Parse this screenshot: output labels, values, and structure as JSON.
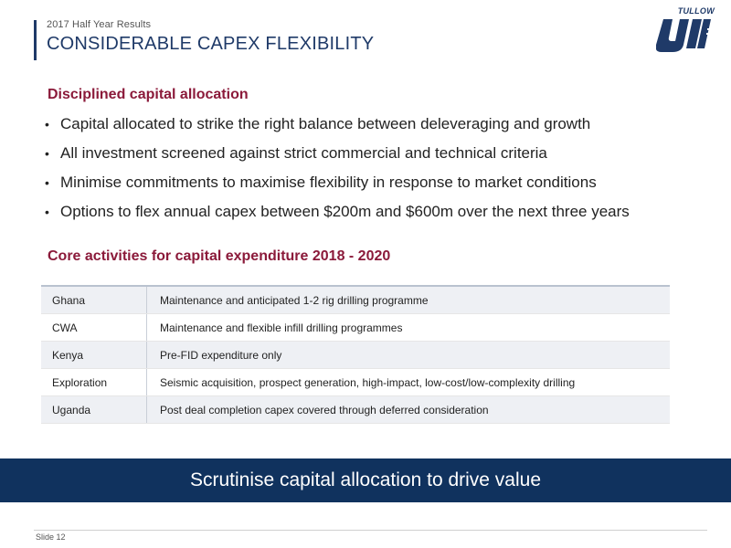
{
  "header": {
    "kicker": "2017 Half Year Results",
    "title": "CONSIDERABLE CAPEX FLEXIBILITY"
  },
  "logo": {
    "word": "TULLOW",
    "brand_color": "#1f3a68"
  },
  "capital_allocation": {
    "heading": "Disciplined capital allocation",
    "bullets": [
      "Capital allocated to strike the right balance between deleveraging and growth",
      "All investment screened against strict commercial and technical criteria",
      "Minimise commitments to maximise flexibility in response to market conditions",
      "Options to flex annual capex between $200m and $600m over the next three years"
    ]
  },
  "core_activities": {
    "heading": "Core activities for capital expenditure 2018 - 2020",
    "rows": [
      {
        "region": "Ghana",
        "activity": "Maintenance and anticipated 1-2 rig drilling programme"
      },
      {
        "region": "CWA",
        "activity": "Maintenance and flexible infill drilling programmes"
      },
      {
        "region": "Kenya",
        "activity": "Pre-FID expenditure only"
      },
      {
        "region": "Exploration",
        "activity": "Seismic acquisition, prospect generation, high-impact, low-cost/low-complexity drilling"
      },
      {
        "region": "Uganda",
        "activity": "Post deal completion capex covered through deferred consideration"
      }
    ]
  },
  "banner": {
    "text": "Scrutinise capital allocation to drive value",
    "color": "#10325e"
  },
  "footer": {
    "slide_label": "Slide 12"
  },
  "colors": {
    "section_heading": "#8b1a3a",
    "title": "#1f3a68"
  }
}
